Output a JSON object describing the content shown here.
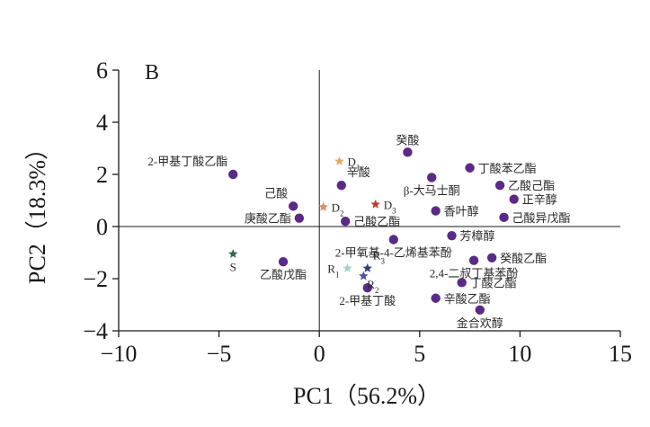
{
  "chart_data": {
    "type": "scatter",
    "panel": "B",
    "xlabel": "PC1（56.2%）",
    "ylabel": "PC2（18.3%）",
    "xlim": [
      -10,
      15
    ],
    "ylim": [
      -4,
      6
    ],
    "xticks": [
      -10,
      -5,
      0,
      5,
      10,
      15
    ],
    "yticks": [
      -4,
      -2,
      0,
      2,
      4,
      6
    ],
    "xtick_labels": [
      "−10",
      "−5",
      "0",
      "5",
      "10",
      "15"
    ],
    "ytick_labels": [
      "−4",
      "−2",
      "0",
      "2",
      "4",
      "6"
    ],
    "colors": {
      "compound": "#5b2a86",
      "S": "#2e6b4e",
      "D1": "#e8a85a",
      "D2": "#e08a5a",
      "D3": "#c0392b",
      "R1": "#9fd3c7",
      "R2": "#4a4ea8",
      "R3": "#2c3e7a"
    },
    "samples": [
      {
        "id": "S",
        "label": "S",
        "sub": "",
        "x": -4.3,
        "y": -1.05,
        "color_key": "S",
        "label_pos": "below"
      },
      {
        "id": "D1",
        "label": "D",
        "sub": "1",
        "x": 1.0,
        "y": 2.5,
        "color_key": "D1",
        "label_pos": "right"
      },
      {
        "id": "D2",
        "label": "D",
        "sub": "2",
        "x": 0.2,
        "y": 0.75,
        "color_key": "D2",
        "label_pos": "right"
      },
      {
        "id": "D3",
        "label": "D",
        "sub": "3",
        "x": 2.8,
        "y": 0.85,
        "color_key": "D3",
        "label_pos": "right"
      },
      {
        "id": "R1",
        "label": "R",
        "sub": "1",
        "x": 1.4,
        "y": -1.6,
        "color_key": "R1",
        "label_pos": "left"
      },
      {
        "id": "R2",
        "label": "R",
        "sub": "2",
        "x": 2.2,
        "y": -1.9,
        "color_key": "R2",
        "label_pos": "below-right"
      },
      {
        "id": "R3",
        "label": "R",
        "sub": "3",
        "x": 2.4,
        "y": -1.6,
        "color_key": "R3",
        "label_pos": "above-right"
      }
    ],
    "compounds": [
      {
        "name": "2-甲基丁酸乙酯",
        "x": -4.3,
        "y": 2.0,
        "label_pos": "above-left"
      },
      {
        "name": "己酸",
        "x": -1.3,
        "y": 0.78,
        "label_pos": "above-left"
      },
      {
        "name": "庚酸乙酯",
        "x": -1.0,
        "y": 0.32,
        "label_pos": "left"
      },
      {
        "name": "乙酸戊酯",
        "x": -1.8,
        "y": -1.35,
        "label_pos": "below"
      },
      {
        "name": "辛酸",
        "x": 1.1,
        "y": 1.58,
        "label_pos": "above-right"
      },
      {
        "name": "己酸乙酯",
        "x": 1.3,
        "y": 0.2,
        "label_pos": "right"
      },
      {
        "name": "癸酸",
        "x": 4.4,
        "y": 2.85,
        "label_pos": "above"
      },
      {
        "name": "β-大马士酮",
        "x": 5.6,
        "y": 1.88,
        "label_pos": "below"
      },
      {
        "name": "香叶醇",
        "x": 5.8,
        "y": 0.6,
        "label_pos": "right"
      },
      {
        "name": "丁酸苯乙酯",
        "x": 7.5,
        "y": 2.25,
        "label_pos": "right"
      },
      {
        "name": "乙酸己酯",
        "x": 9.0,
        "y": 1.58,
        "label_pos": "right"
      },
      {
        "name": "正辛醇",
        "x": 9.7,
        "y": 1.05,
        "label_pos": "right"
      },
      {
        "name": "己酸异戊酯",
        "x": 9.2,
        "y": 0.35,
        "label_pos": "right"
      },
      {
        "name": "2-甲氧基-4-乙烯基苯酚",
        "x": 3.7,
        "y": -0.5,
        "label_pos": "below"
      },
      {
        "name": "芳樟醇",
        "x": 6.6,
        "y": -0.35,
        "label_pos": "right"
      },
      {
        "name": "癸酸乙酯",
        "x": 8.6,
        "y": -1.2,
        "label_pos": "right"
      },
      {
        "name": "2,4-二叔丁基苯酚",
        "x": 7.7,
        "y": -1.3,
        "label_pos": "below"
      },
      {
        "name": "丁酸乙酯",
        "x": 7.1,
        "y": -2.15,
        "label_pos": "right"
      },
      {
        "name": "2-甲基丁酸",
        "x": 2.4,
        "y": -2.35,
        "label_pos": "below"
      },
      {
        "name": "辛酸乙酯",
        "x": 5.8,
        "y": -2.75,
        "label_pos": "right"
      },
      {
        "name": "金合欢醇",
        "x": 8.0,
        "y": -3.2,
        "label_pos": "below"
      }
    ]
  }
}
